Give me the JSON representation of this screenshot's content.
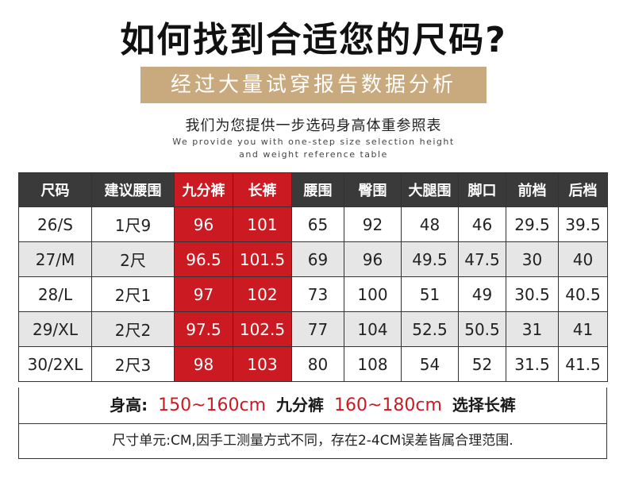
{
  "title": "如何找到合适您的尺码?",
  "banner": "经过大量试穿报告数据分析",
  "subtitle": "我们为您提供一步选码身高体重参照表",
  "english_line1": "We provide you with one-step size selection height",
  "english_line2": "and weight reference table",
  "table": {
    "headers": [
      "尺码",
      "建议腰围",
      "九分裤",
      "长裤",
      "腰围",
      "臀围",
      "大腿围",
      "脚口",
      "前档",
      "后档"
    ],
    "rows": [
      [
        "26/S",
        "1尺9",
        "96",
        "101",
        "65",
        "92",
        "48",
        "46",
        "29.5",
        "39.5"
      ],
      [
        "27/M",
        "2尺",
        "96.5",
        "101.5",
        "69",
        "96",
        "49.5",
        "47.5",
        "30",
        "40"
      ],
      [
        "28/L",
        "2尺1",
        "97",
        "102",
        "73",
        "100",
        "51",
        "49",
        "30.5",
        "40.5"
      ],
      [
        "29/XL",
        "2尺2",
        "97.5",
        "102.5",
        "77",
        "104",
        "52.5",
        "50.5",
        "31",
        "41"
      ],
      [
        "30/2XL",
        "2尺3",
        "98",
        "103",
        "80",
        "108",
        "54",
        "52",
        "31.5",
        "41.5"
      ]
    ]
  },
  "height_row": {
    "label": "身高:",
    "range1": "150~160cm",
    "text1": "九分裤",
    "range2": "160~180cm",
    "text2": "选择长裤"
  },
  "note": "尺寸单元:CM,因手工测量方式不同，存在2-4CM误差皆属合理范围.",
  "colors": {
    "accent_red": "#cc1a22",
    "banner_gold": "#c9aa7e",
    "header_dark": "#3a3a3a"
  }
}
